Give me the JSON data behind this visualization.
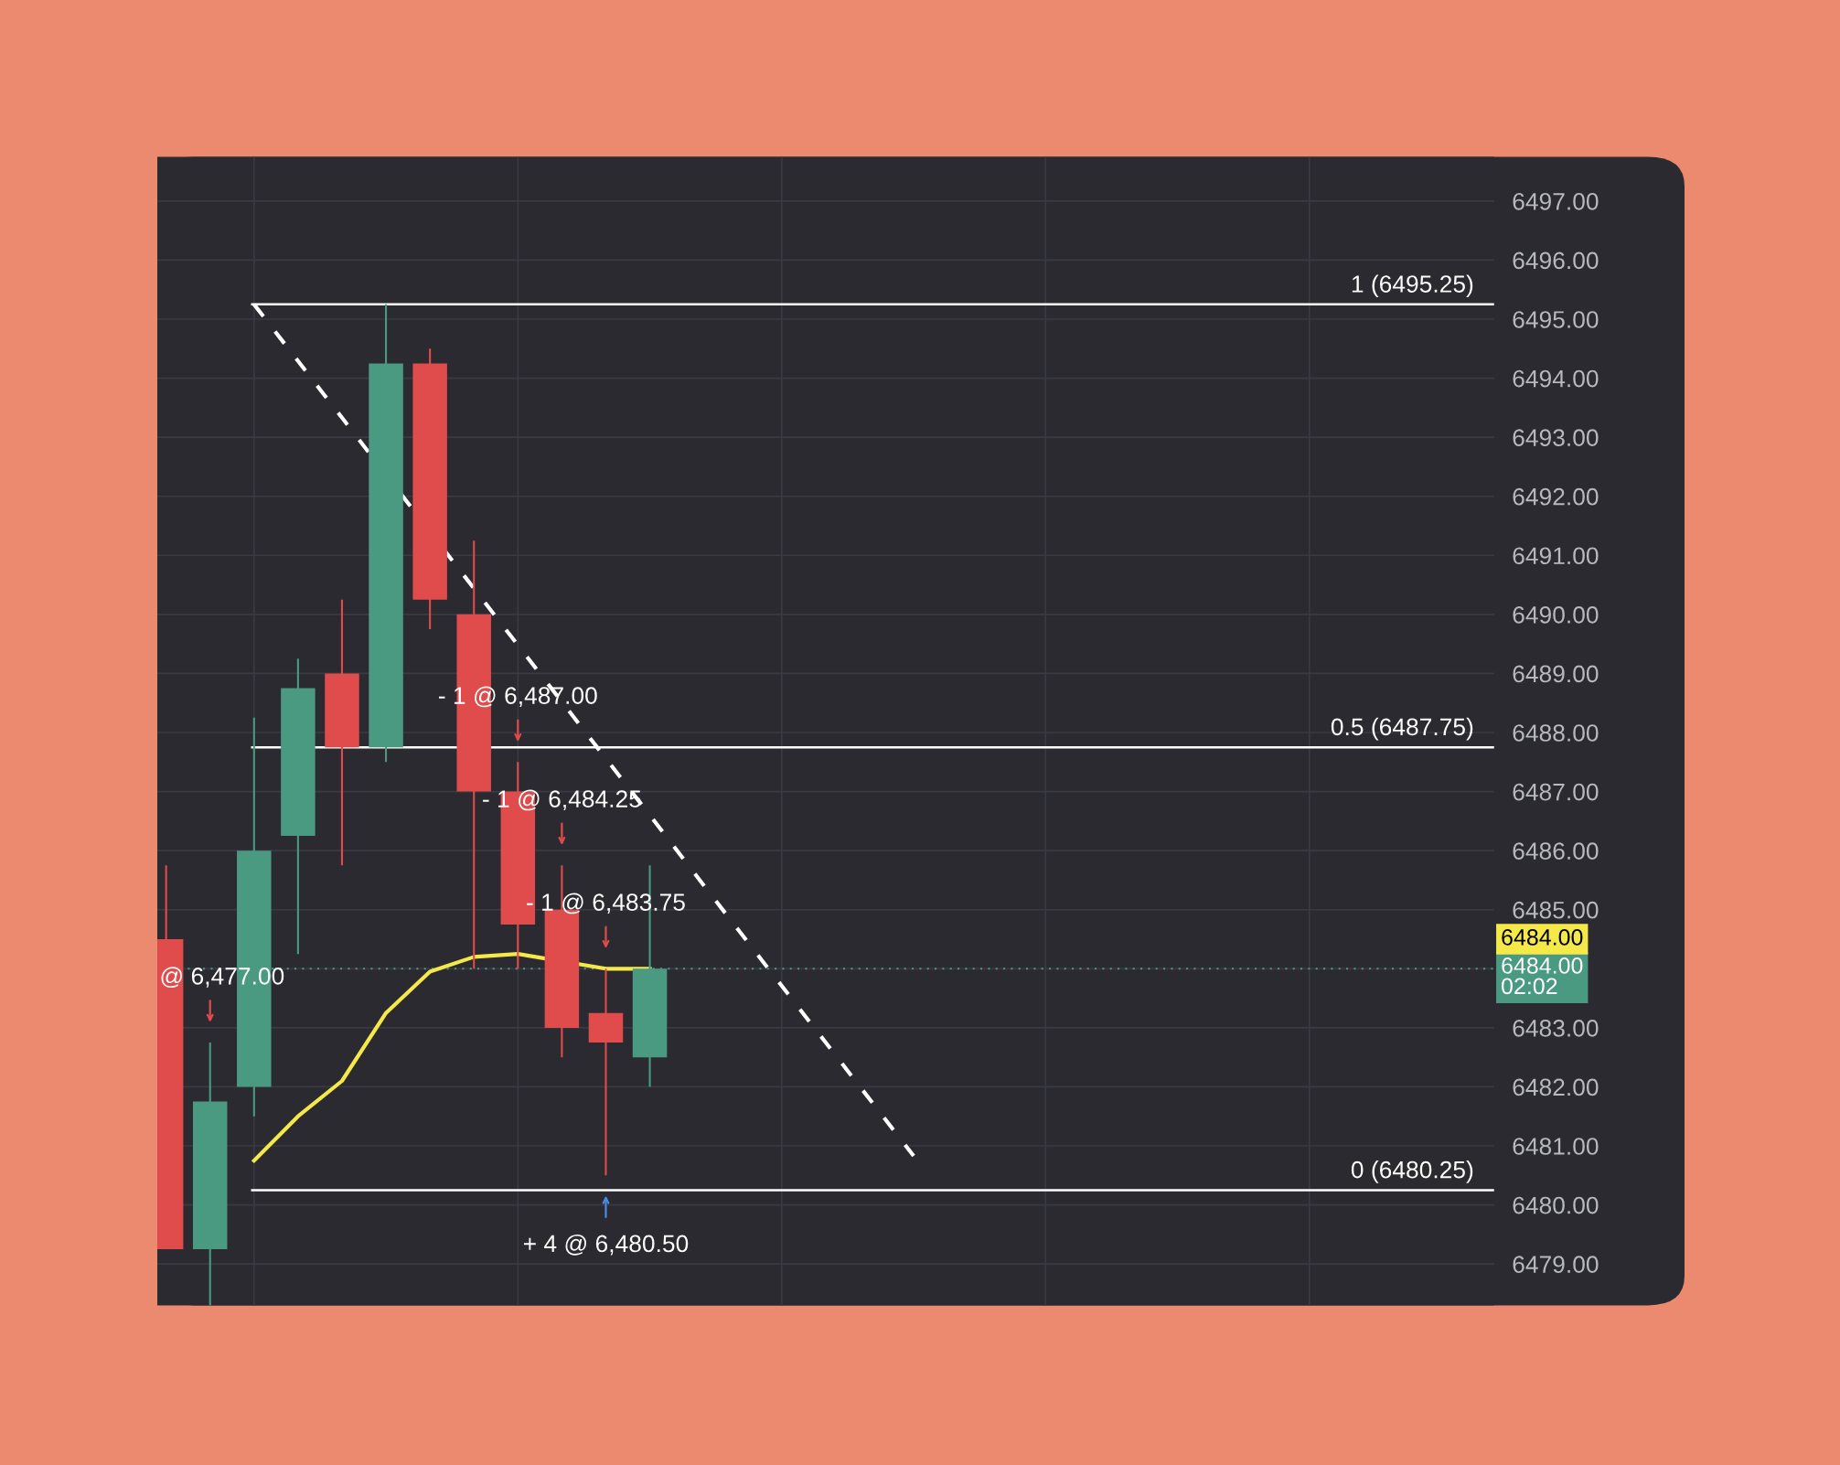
{
  "chart_data": {
    "type": "candlestick",
    "categories": [
      null,
      null,
      null,
      null,
      null,
      null,
      null,
      null,
      null,
      null,
      null,
      null,
      null,
      null,
      null,
      null,
      null,
      null,
      null,
      null,
      null,
      null,
      null,
      null,
      null,
      null,
      null,
      null,
      null,
      null,
      null
    ],
    "ohlc": [
      [
        6484.5,
        6485.75,
        6479.25,
        6479.25
      ],
      [
        6479.25,
        6482.75,
        6478.3,
        6481.75
      ],
      [
        6482.0,
        6488.25,
        6481.5,
        6486.0
      ],
      [
        6486.25,
        6489.25,
        6484.25,
        6488.75
      ],
      [
        6489.0,
        6490.25,
        6485.75,
        6487.75
      ],
      [
        6487.75,
        6495.25,
        6487.5,
        6494.25
      ],
      [
        6494.25,
        6494.5,
        6489.75,
        6490.25
      ],
      [
        6490.0,
        6491.25,
        6484.0,
        6487.0
      ],
      [
        6487.0,
        6487.5,
        6484.0,
        6484.75
      ],
      [
        6485.0,
        6485.75,
        6482.5,
        6483.0
      ],
      [
        6483.25,
        6484.0,
        6480.5,
        6482.75
      ],
      [
        6482.5,
        6485.75,
        6482.0,
        6484.0
      ],
      null,
      null,
      null,
      null,
      null,
      null,
      null,
      null,
      null,
      null,
      null,
      null,
      null,
      null,
      null,
      null,
      null,
      null,
      null
    ],
    "colors": [
      "#e04b4b",
      "#4a9a82",
      "#4a9a82",
      "#4a9a82",
      "#e04b4b",
      "#4a9a82",
      "#e04b4b",
      "#e04b4b",
      "#e04b4b",
      "#e04b4b",
      "#e04b4b",
      "#4a9a82",
      null,
      null,
      null,
      null,
      null,
      null,
      null,
      null,
      null,
      null,
      null,
      null,
      null,
      null,
      null,
      null,
      null,
      null,
      null
    ],
    "series": [
      {
        "type": "line",
        "color": "#f5e94a",
        "values": [
          null,
          null,
          6480.75,
          6481.5,
          6482.1,
          6483.25,
          6483.95,
          6484.2,
          6484.25,
          null,
          6484.0,
          6484.0,
          null,
          null,
          null,
          null,
          null,
          null,
          null,
          null,
          null,
          null,
          null,
          null,
          null,
          null,
          null,
          null,
          null,
          null,
          null
        ]
      },
      {
        "type": "line",
        "color": "#ffffff",
        "line_style": "dashed",
        "values": [
          null,
          null,
          6495.25,
          6494.29,
          6493.33,
          null,
          null,
          6490.44,
          6489.48,
          6488.52,
          6487.56,
          6486.6,
          6485.63,
          6484.67,
          6483.71,
          6482.75,
          6481.79,
          6480.83,
          null,
          null,
          null,
          null,
          null,
          null,
          null,
          null,
          null,
          null,
          null,
          null,
          null
        ]
      }
    ],
    "ylim": [
      6478.3,
      6497.75
    ],
    "yticks": [
      {
        "value": 6479,
        "label": "6479.00"
      },
      {
        "value": 6480,
        "label": "6480.00"
      },
      {
        "value": 6481,
        "label": "6481.00"
      },
      {
        "value": 6482,
        "label": "6482.00"
      },
      {
        "value": 6483,
        "label": "6483.00"
      },
      {
        "value": 6484,
        "label": null
      },
      {
        "value": 6485,
        "label": "6485.00"
      },
      {
        "value": 6486,
        "label": "6486.00"
      },
      {
        "value": 6487,
        "label": "6487.00"
      },
      {
        "value": 6488,
        "label": "6488.00"
      },
      {
        "value": 6489,
        "label": "6489.00"
      },
      {
        "value": 6490,
        "label": "6490.00"
      },
      {
        "value": 6491,
        "label": "6491.00"
      },
      {
        "value": 6492,
        "label": "6492.00"
      },
      {
        "value": 6493,
        "label": "6493.00"
      },
      {
        "value": 6494,
        "label": "6494.00"
      },
      {
        "value": 6495,
        "label": "6495.00"
      },
      {
        "value": 6496,
        "label": "6496.00"
      },
      {
        "value": 6497,
        "label": "6497.00"
      }
    ],
    "tick_labels": "y",
    "grid": true,
    "ref_lines": [
      {
        "axis": "y",
        "value": 6495.25,
        "label": "1 (6495.25)",
        "color": "#ffffff",
        "line_style": "solid"
      },
      {
        "axis": "y",
        "value": 6487.75,
        "label": "0.5 (6487.75)",
        "color": "#ffffff",
        "line_style": "solid"
      },
      {
        "axis": "y",
        "value": 6480.25,
        "label": "0 (6480.25)",
        "color": "#ffffff",
        "line_style": "solid"
      },
      {
        "axis": "y",
        "value": 6484.0,
        "label": "6484.00\n02:02",
        "color": "#4a9a82",
        "line_style": "dotted"
      }
    ],
    "annotations": [
      "6484.00",
      "- 1 @ 6,487.00",
      "- 1 @ 6,484.25",
      "- 1 @ 6,483.75",
      "@ 6,477.00",
      "+ 4 @ 6,480.50"
    ]
  }
}
